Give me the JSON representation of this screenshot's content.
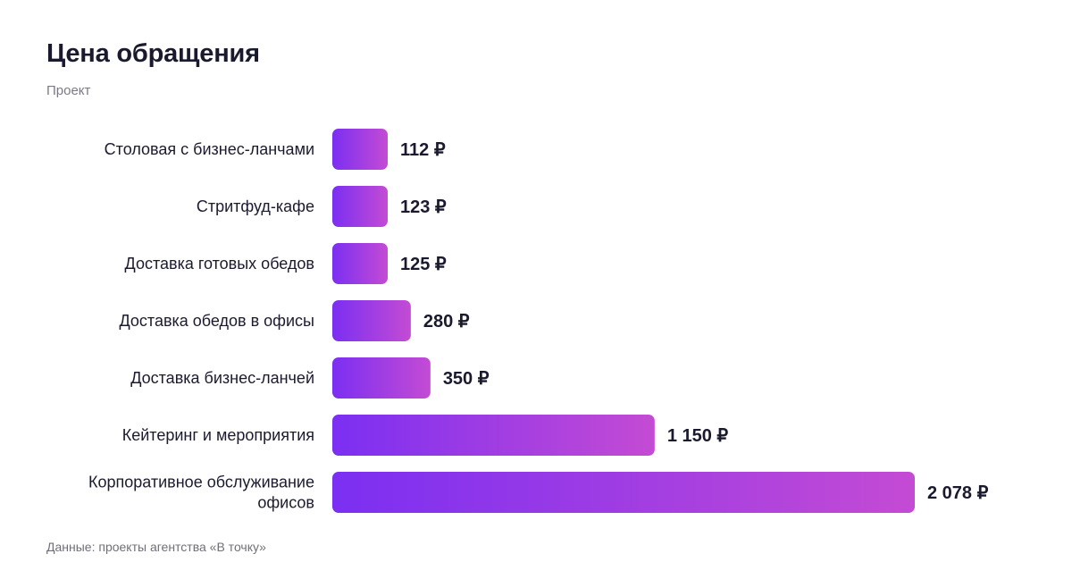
{
  "header": {
    "title": "Цена обращения",
    "subtitle": "Проект"
  },
  "footer": {
    "source": "Данные: проекты агентства «В точку»"
  },
  "colors": {
    "bar_start": "#7b2ff2",
    "bar_end": "#c44bd4",
    "text": "#1b1b2f",
    "muted": "#7a7a85"
  },
  "chart_data": {
    "type": "bar",
    "orientation": "horizontal",
    "title": "Цена обращения",
    "subtitle": "Проект",
    "unit": "₽",
    "categories": [
      "Столовая с бизнес-ланчами",
      "Стритфуд-кафе",
      "Доставка готовых обедов",
      "Доставка обедов в офисы",
      "Доставка бизнес-ланчей",
      "Кейтеринг и мероприятия",
      "Корпоративное обслуживание офисов"
    ],
    "category_label_lines": [
      [
        "Столовая с бизнес-ланчами"
      ],
      [
        "Стритфуд-кафе"
      ],
      [
        "Доставка готовых обедов"
      ],
      [
        "Доставка обедов в офисы"
      ],
      [
        "Доставка бизнес-ланчей"
      ],
      [
        "Кейтеринг и мероприятия"
      ],
      [
        "Корпоративное обслуживание",
        "офисов"
      ]
    ],
    "values": [
      112,
      123,
      125,
      280,
      350,
      1150,
      2078
    ],
    "value_labels": [
      "112 ₽",
      "123 ₽",
      "125 ₽",
      "280 ₽",
      "350 ₽",
      "1 150 ₽",
      "2 078 ₽"
    ],
    "grid": false,
    "legend": "none"
  }
}
